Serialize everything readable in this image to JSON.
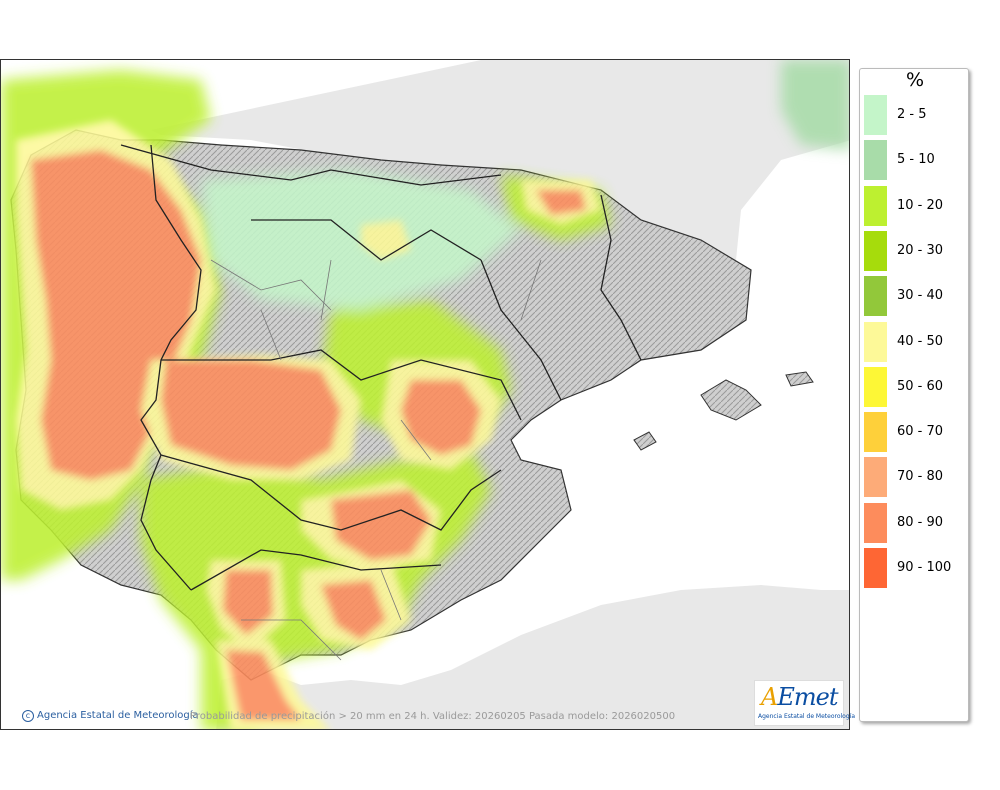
{
  "legend": {
    "unit": "%",
    "items": [
      {
        "label": "2 - 5",
        "color": "#c4f5c9"
      },
      {
        "label": "5 - 10",
        "color": "#a8dca9"
      },
      {
        "label": "10 - 20",
        "color": "#bdf030"
      },
      {
        "label": "20 - 30",
        "color": "#a6dc0c"
      },
      {
        "label": "30 - 40",
        "color": "#92c83a"
      },
      {
        "label": "40 - 50",
        "color": "#fdf998"
      },
      {
        "label": "50 - 60",
        "color": "#fdf736"
      },
      {
        "label": "60 - 70",
        "color": "#fed03a"
      },
      {
        "label": "70 - 80",
        "color": "#fdab78"
      },
      {
        "label": "80 - 90",
        "color": "#fd8c5c"
      },
      {
        "label": "90 - 100",
        "color": "#fe6634"
      }
    ]
  },
  "credit": "Agencia Estatal de Meteorología",
  "caption": "Probabilidad de precipitación > 20 mm en 24 h. Validez: 20260205 Pasada modelo: 2026020500",
  "logo": {
    "word_a": "A",
    "word_rest": "Emet",
    "sub": "Agencia Estatal de Meteorología",
    "brand_color": "#0b4ea2",
    "accent_color": "#e9a000"
  },
  "map": {
    "land_color": "#c8c8c8",
    "sea_color": "#ffffff",
    "outside_land_color": "#e8e8e8"
  }
}
